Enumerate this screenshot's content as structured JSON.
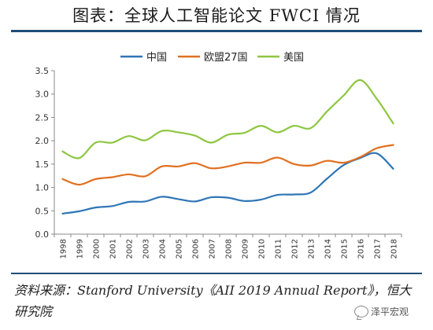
{
  "header": {
    "title": "图表：全球人工智能论文 FWCI 情况"
  },
  "source": {
    "text": "资料来源：Stanford University《AII 2019 Annual Report》，恒大研究院"
  },
  "watermark": {
    "text": "泽平宏观",
    "icon": "wechat-icon"
  },
  "chart_data": {
    "type": "line",
    "title": "",
    "xlabel": "",
    "ylabel": "",
    "ylim": [
      0,
      3.5
    ],
    "yticks": [
      "0.0",
      "0.5",
      "1.0",
      "1.5",
      "2.0",
      "2.5",
      "3.0",
      "3.5"
    ],
    "grid": false,
    "legend_position": "top",
    "x": [
      "1998",
      "1999",
      "2000",
      "2001",
      "2002",
      "2003",
      "2004",
      "2005",
      "2006",
      "2007",
      "2008",
      "2009",
      "2010",
      "2011",
      "2012",
      "2013",
      "2014",
      "2015",
      "2016",
      "2017",
      "2018"
    ],
    "series": [
      {
        "name": "中国",
        "color": "#2e75b6",
        "values": [
          0.44,
          0.49,
          0.57,
          0.6,
          0.69,
          0.7,
          0.8,
          0.75,
          0.7,
          0.79,
          0.78,
          0.71,
          0.74,
          0.84,
          0.85,
          0.89,
          1.19,
          1.48,
          1.63,
          1.73,
          1.4
        ]
      },
      {
        "name": "欧盟27国",
        "color": "#e07020",
        "values": [
          1.18,
          1.06,
          1.18,
          1.22,
          1.28,
          1.24,
          1.45,
          1.45,
          1.52,
          1.41,
          1.45,
          1.53,
          1.53,
          1.64,
          1.5,
          1.47,
          1.57,
          1.53,
          1.65,
          1.84,
          1.91
        ]
      },
      {
        "name": "美国",
        "color": "#8ec641",
        "values": [
          1.77,
          1.63,
          1.96,
          1.96,
          2.1,
          2.01,
          2.21,
          2.18,
          2.11,
          1.96,
          2.13,
          2.17,
          2.32,
          2.18,
          2.32,
          2.27,
          2.63,
          2.97,
          3.3,
          2.9,
          2.37
        ]
      }
    ]
  }
}
